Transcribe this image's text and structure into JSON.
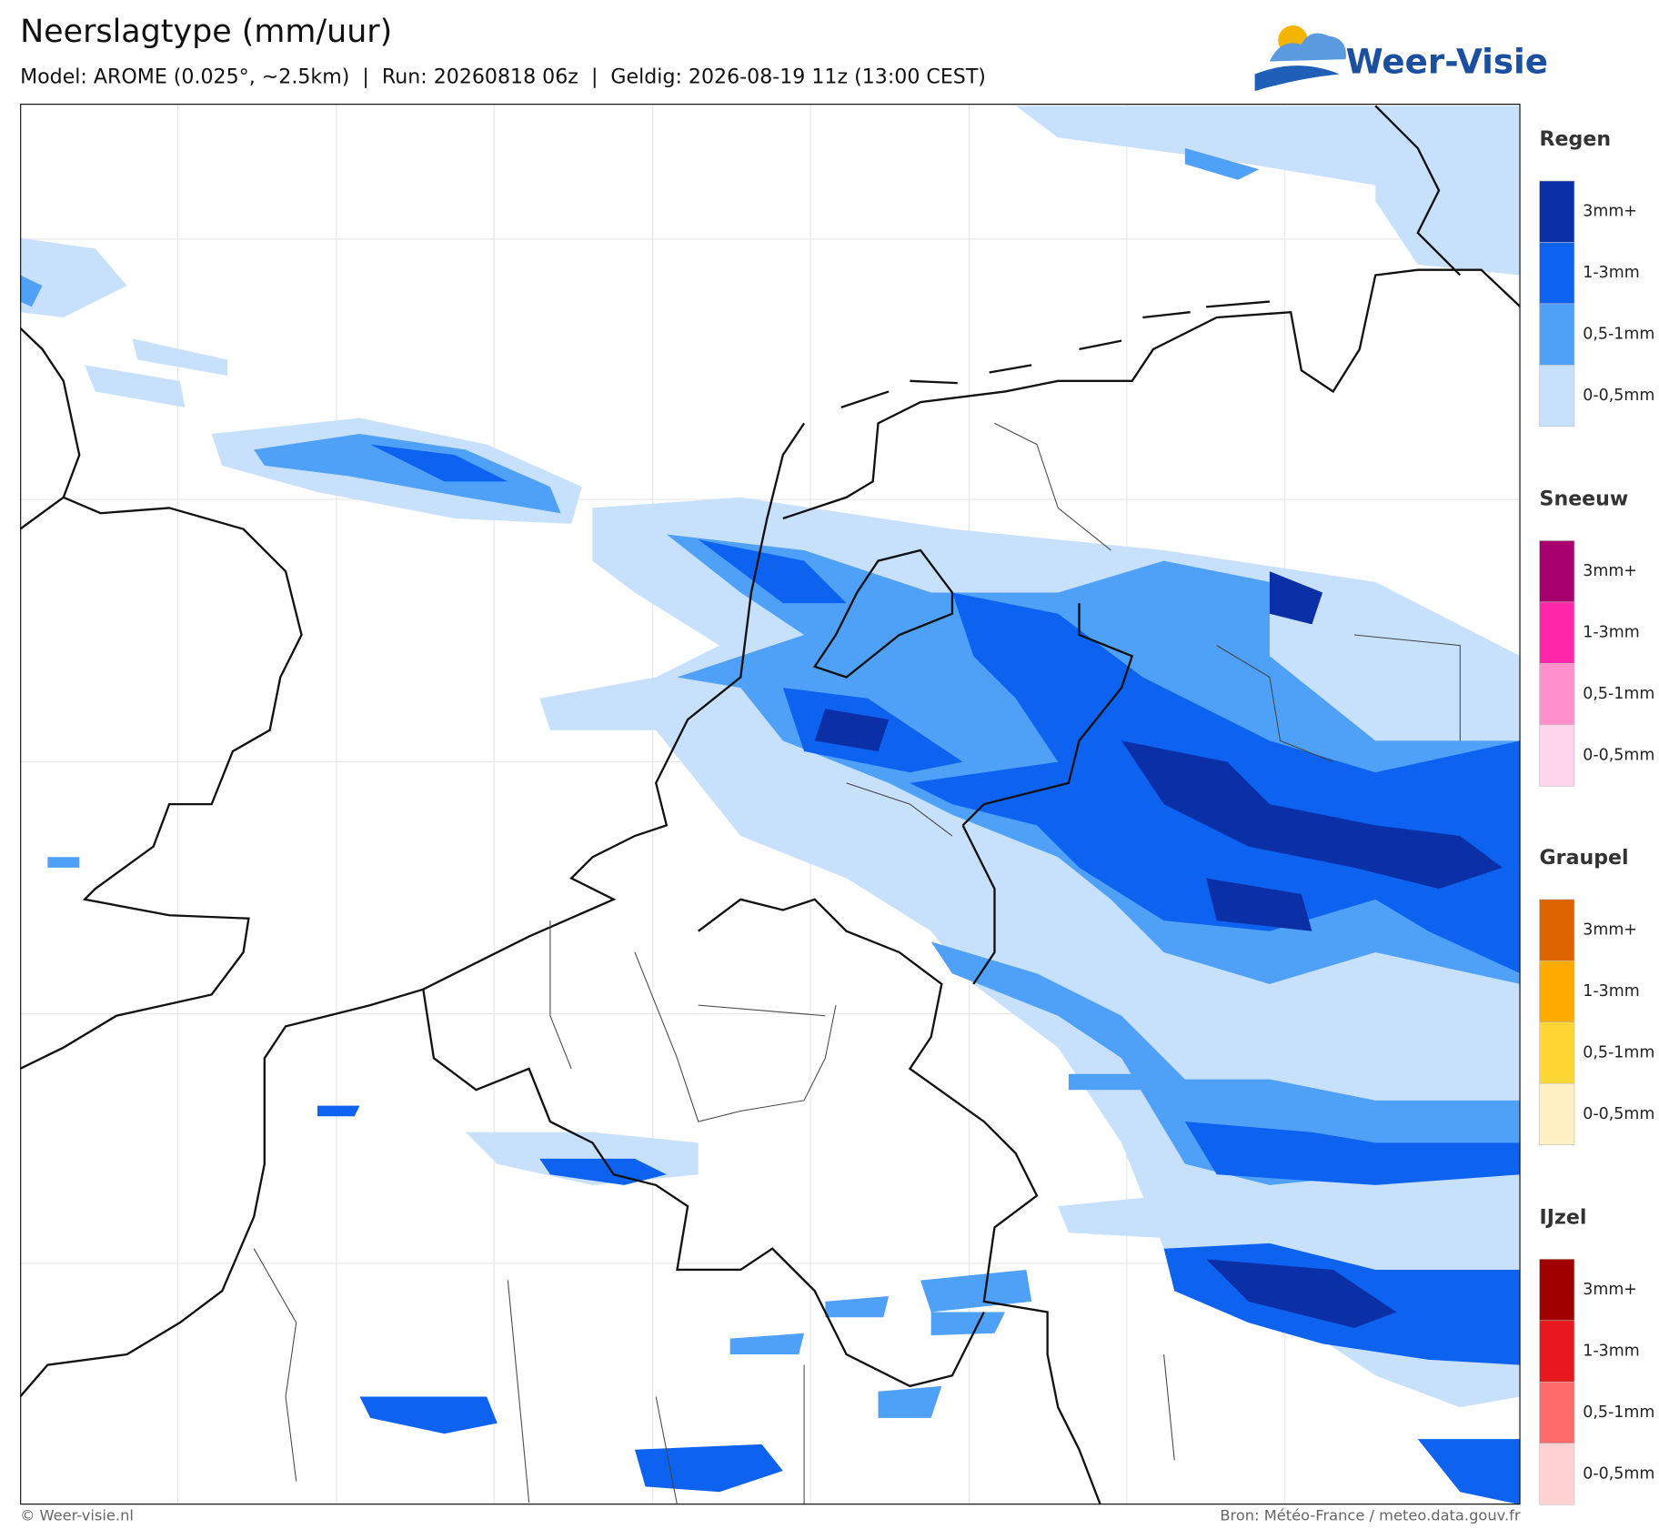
{
  "header": {
    "title": "Neerslagtype (mm/uur)",
    "subtitle": "Model: AROME (0.025°, ~2.5km)  |  Run: 20260818 06z  |  Geldig: 2026-08-19 11z (13:00 CEST)"
  },
  "logo": {
    "text": "Weer-Visie"
  },
  "legend": {
    "groups": [
      {
        "title": "Regen",
        "items": [
          {
            "label": "3mm+",
            "color": "#0a2fa6"
          },
          {
            "label": "1-3mm",
            "color": "#0d62f0"
          },
          {
            "label": "0,5-1mm",
            "color": "#4fa0f7"
          },
          {
            "label": "0-0,5mm",
            "color": "#c7e0fb"
          }
        ]
      },
      {
        "title": "Sneeuw",
        "items": [
          {
            "label": "3mm+",
            "color": "#a8006e"
          },
          {
            "label": "1-3mm",
            "color": "#ff27a8"
          },
          {
            "label": "0,5-1mm",
            "color": "#ff8fcd"
          },
          {
            "label": "0-0,5mm",
            "color": "#ffd6ec"
          }
        ]
      },
      {
        "title": "Graupel",
        "items": [
          {
            "label": "3mm+",
            "color": "#dd6400"
          },
          {
            "label": "1-3mm",
            "color": "#ffaa00"
          },
          {
            "label": "0,5-1mm",
            "color": "#ffd633"
          },
          {
            "label": "0-0,5mm",
            "color": "#fff2c2"
          }
        ]
      },
      {
        "title": "IJzel",
        "items": [
          {
            "label": "3mm+",
            "color": "#a00000"
          },
          {
            "label": "1-3mm",
            "color": "#e8191e"
          },
          {
            "label": "0,5-1mm",
            "color": "#ff6a6a"
          },
          {
            "label": "0-0,5mm",
            "color": "#ffd1d1"
          }
        ]
      }
    ]
  },
  "footer": {
    "left": "© Weer-visie.nl",
    "right": "Bron: Météo-France / meteo.data.gouv.fr"
  }
}
